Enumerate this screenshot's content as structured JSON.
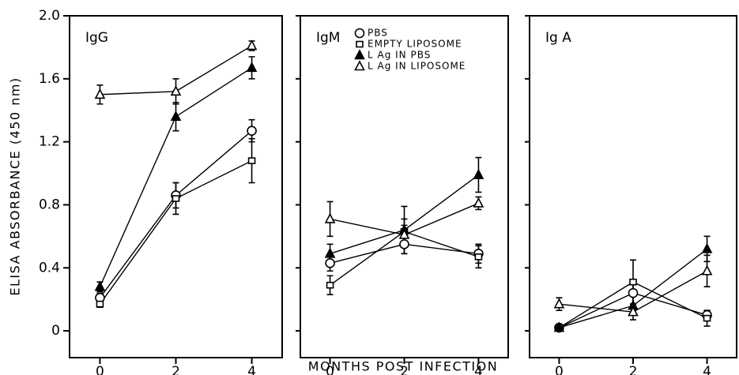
{
  "chart_data": [
    {
      "type": "line",
      "title": "IgG",
      "ylabel": "ELISA ABSORBANCE (450 nm)",
      "x": [
        0,
        2,
        4
      ],
      "xlim": [
        -0.8,
        4.8
      ],
      "xticks": [
        0,
        2,
        4
      ],
      "ylim": [
        -0.17,
        2.0
      ],
      "yticks": [
        0,
        0.4,
        0.8,
        1.2,
        1.6,
        {
          "value": 2,
          "label": "2.0"
        }
      ],
      "series": [
        {
          "marker": "circle",
          "filled": false,
          "color": "#000000",
          "values": [
            0.21,
            0.86,
            1.27
          ],
          "errors": [
            0.03,
            0.08,
            0.07
          ]
        },
        {
          "marker": "square",
          "filled": false,
          "color": "#000000",
          "values": [
            0.17,
            0.84,
            1.08
          ],
          "errors": [
            0.02,
            0.1,
            0.14
          ]
        },
        {
          "marker": "triangle",
          "filled": true,
          "color": "#000000",
          "values": [
            0.28,
            1.36,
            1.67
          ],
          "errors": [
            0.03,
            0.09,
            0.07
          ]
        },
        {
          "marker": "triangle",
          "filled": false,
          "color": "#000000",
          "values": [
            1.5,
            1.52,
            1.81
          ],
          "errors": [
            0.06,
            0.08,
            0.03
          ]
        }
      ]
    },
    {
      "type": "line",
      "title": "IgM",
      "xlabel": "MONTHS POST INFECTION",
      "x": [
        0,
        2,
        4
      ],
      "xlim": [
        -0.8,
        4.8
      ],
      "xticks": [
        0,
        2,
        4
      ],
      "ylim": [
        -0.17,
        2.0
      ],
      "series": [
        {
          "name": "PBS",
          "marker": "circle",
          "filled": false,
          "color": "#000000",
          "values": [
            0.43,
            0.55,
            0.49
          ],
          "errors": [
            0.05,
            0.06,
            0.06
          ]
        },
        {
          "name": "EMPTY LIPOSOME",
          "marker": "square",
          "filled": false,
          "color": "#000000",
          "values": [
            0.29,
            0.63,
            0.47
          ],
          "errors": [
            0.06,
            0.08,
            0.07
          ]
        },
        {
          "name": "L Ag IN PBS",
          "marker": "triangle",
          "filled": true,
          "color": "#000000",
          "values": [
            0.49,
            0.64,
            0.99
          ],
          "errors": [
            0.06,
            0.15,
            0.11
          ]
        },
        {
          "name": "L Ag IN LIPOSOME",
          "marker": "triangle",
          "filled": false,
          "color": "#000000",
          "values": [
            0.71,
            0.61,
            0.81
          ],
          "errors": [
            0.11,
            0.06,
            0.04
          ]
        }
      ]
    },
    {
      "type": "line",
      "title": "Ig A",
      "x": [
        0,
        2,
        4
      ],
      "xlim": [
        -0.8,
        4.8
      ],
      "xticks": [
        0,
        2,
        4
      ],
      "ylim": [
        -0.17,
        2.0
      ],
      "series": [
        {
          "marker": "circle",
          "filled": false,
          "color": "#000000",
          "values": [
            0.02,
            0.24,
            0.1
          ],
          "errors": [
            0.01,
            0.07,
            0.03
          ]
        },
        {
          "marker": "square",
          "filled": false,
          "color": "#000000",
          "values": [
            0.02,
            0.31,
            0.08
          ],
          "errors": [
            0.01,
            0.14,
            0.05
          ]
        },
        {
          "marker": "triangle",
          "filled": true,
          "color": "#000000",
          "values": [
            0.02,
            0.16,
            0.52
          ],
          "errors": [
            0.01,
            0.06,
            0.08
          ]
        },
        {
          "marker": "triangle",
          "filled": false,
          "color": "#000000",
          "values": [
            0.17,
            0.12,
            0.38
          ],
          "errors": [
            0.04,
            0.05,
            0.1
          ]
        }
      ]
    }
  ]
}
